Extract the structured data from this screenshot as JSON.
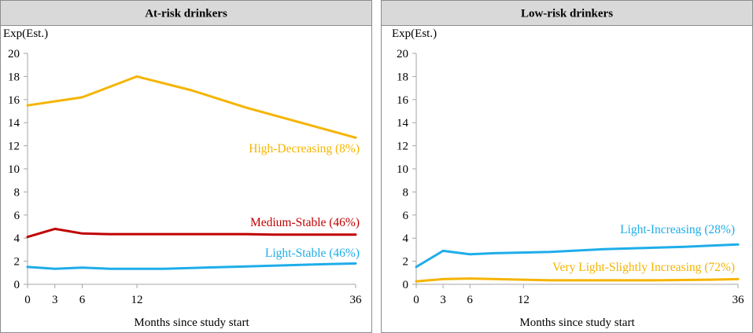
{
  "chart_data": [
    {
      "type": "line",
      "title": "At-risk drinkers",
      "ylabel": "Exp(Est.)",
      "xlabel": "Months since study start",
      "ylim": [
        0,
        20
      ],
      "yticks": [
        0,
        2,
        4,
        6,
        8,
        10,
        12,
        14,
        16,
        18,
        20
      ],
      "xlim": [
        0,
        36
      ],
      "xticks": [
        0,
        3,
        6,
        12,
        36
      ],
      "xtick_labels": [
        "0",
        "3",
        "6",
        "12",
        "36"
      ],
      "series": [
        {
          "name": "High-Decreasing (8%)",
          "color": "#F5B400",
          "x": [
            0,
            6,
            12,
            18,
            24,
            30,
            36
          ],
          "values": [
            15.5,
            16.2,
            18.0,
            16.8,
            15.3,
            14.0,
            12.7
          ]
        },
        {
          "name": "Medium-Stable (46%)",
          "color": "#C00000",
          "x": [
            0,
            3,
            6,
            9,
            12,
            24,
            27,
            36
          ],
          "values": [
            4.1,
            4.8,
            4.4,
            4.35,
            4.35,
            4.35,
            4.3,
            4.3
          ]
        },
        {
          "name": "Light-Stable (46%)",
          "color": "#1EADE9",
          "x": [
            0,
            3,
            6,
            9,
            15,
            24,
            33,
            36
          ],
          "values": [
            1.5,
            1.35,
            1.45,
            1.35,
            1.35,
            1.55,
            1.75,
            1.8
          ]
        }
      ]
    },
    {
      "type": "line",
      "title": "Low-risk drinkers",
      "ylabel": "Exp(Est.)",
      "xlabel": "Months since study start",
      "ylim": [
        0,
        20
      ],
      "yticks": [
        0,
        2,
        4,
        6,
        8,
        10,
        12,
        14,
        16,
        18,
        20
      ],
      "xlim": [
        0,
        36
      ],
      "xticks": [
        0,
        3,
        6,
        12,
        36
      ],
      "xtick_labels": [
        "0",
        "3",
        "6",
        "12",
        "36"
      ],
      "series": [
        {
          "name": "Light-Increasing (28%)",
          "color": "#1EADE9",
          "x": [
            0,
            3,
            6,
            9,
            15,
            21,
            30,
            36
          ],
          "values": [
            1.5,
            2.9,
            2.6,
            2.7,
            2.8,
            3.05,
            3.25,
            3.45
          ]
        },
        {
          "name": "Very Light-Slightly Increasing (72%)",
          "color": "#F5B400",
          "x": [
            0,
            3,
            6,
            9,
            15,
            27,
            33,
            36
          ],
          "values": [
            0.25,
            0.45,
            0.5,
            0.45,
            0.35,
            0.35,
            0.4,
            0.45
          ]
        }
      ]
    }
  ]
}
